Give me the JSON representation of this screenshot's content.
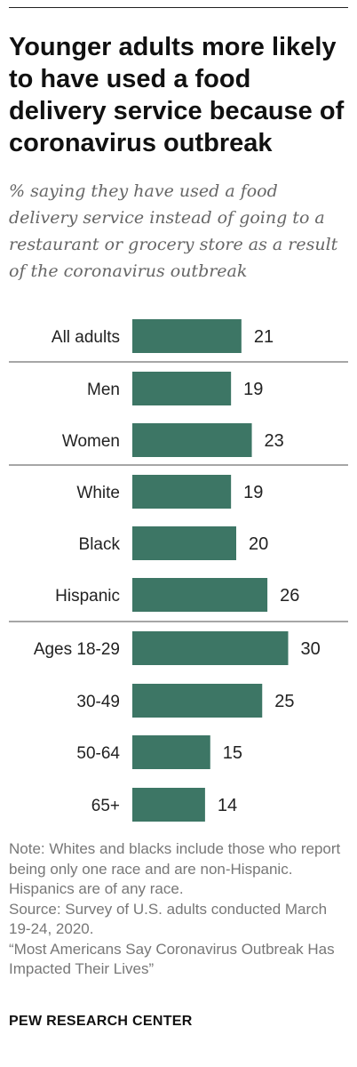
{
  "header": {
    "title": "Younger adults more likely to have used a food delivery service because of coronavirus outbreak",
    "subtitle": "% saying they have used a food delivery service instead of going to a restaurant or grocery store as a result of the coronavirus outbreak"
  },
  "chart_data": {
    "type": "bar",
    "orientation": "horizontal",
    "categories": [
      "All adults",
      "Men",
      "Women",
      "White",
      "Black",
      "Hispanic",
      "Ages 18-29",
      "30-49",
      "50-64",
      "65+"
    ],
    "values": [
      21,
      19,
      23,
      19,
      20,
      26,
      30,
      25,
      15,
      14
    ],
    "groups": [
      [
        "All adults"
      ],
      [
        "Men",
        "Women"
      ],
      [
        "White",
        "Black",
        "Hispanic"
      ],
      [
        "Ages 18-29",
        "30-49",
        "50-64",
        "65+"
      ]
    ],
    "bar_color": "#3d7665",
    "title": "",
    "xlabel": "",
    "ylabel": ""
  },
  "footer": {
    "notes": [
      "Note: Whites and blacks include those who report being only one race and are non-Hispanic. Hispanics are of any race.",
      "Source: Survey of U.S. adults conducted March 19-24, 2020.",
      "“Most Americans Say Coronavirus Outbreak Has Impacted Their Lives”"
    ],
    "brand": "PEW RESEARCH CENTER"
  }
}
